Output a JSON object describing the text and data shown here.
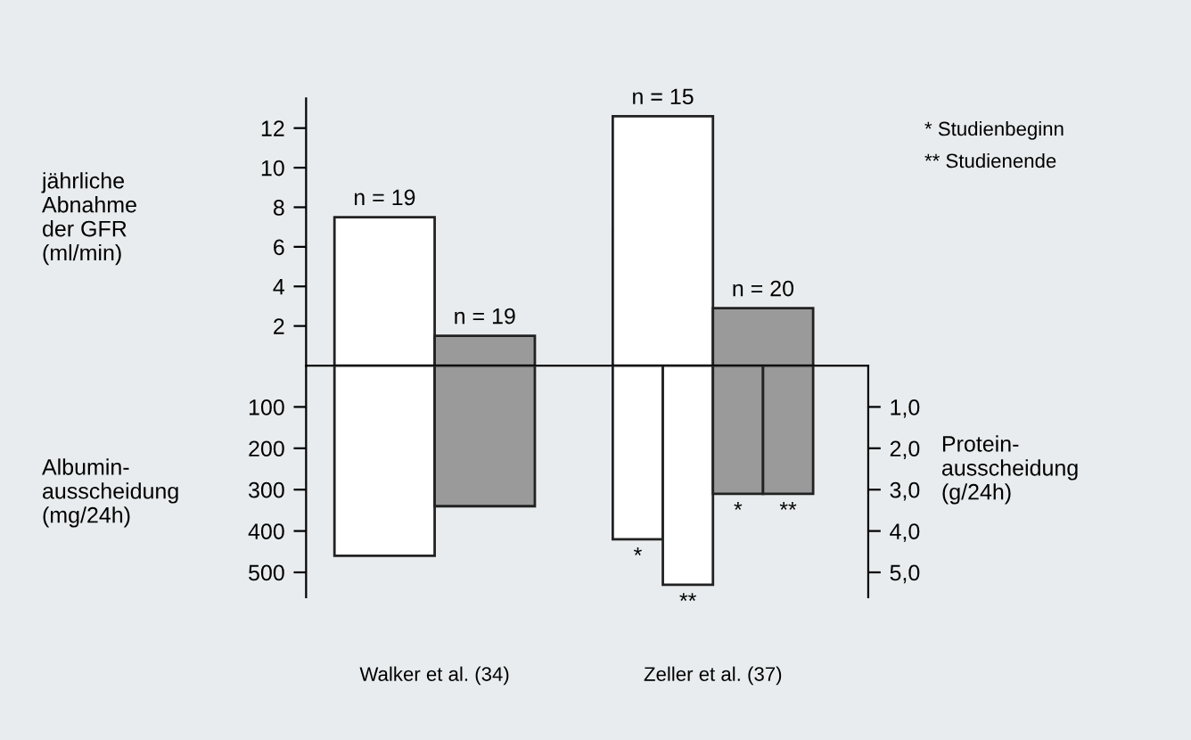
{
  "chart_data": [
    {
      "type": "bar",
      "ylabel": "jährliche\nAbnahme\nder GFR\n(ml/min)",
      "annotations": [
        "* Studienbeginn",
        "** Studienende",
        {
          "text": "n = 19",
          "x": "Walker et al. (34)",
          "y": 7.5
        },
        {
          "text": "n = 19",
          "x": "Walker et al. (34)",
          "y": 1.5
        },
        {
          "text": "n = 15",
          "x": "Zeller et al. (37)",
          "y": 12.6
        },
        {
          "text": "n = 20",
          "x": "Zeller et al. (37)",
          "y": 2.9
        }
      ],
      "categories": [
        "Walker et al. (34)",
        "Zeller et al. (37)"
      ],
      "series": [
        {
          "color": "#ffffff",
          "values": [
            7.5,
            12.6
          ]
        },
        {
          "color": "#9a9a9a",
          "values": [
            1.5,
            2.9
          ]
        }
      ],
      "ylim": [
        0,
        13.5
      ],
      "yticks": [
        2,
        4,
        6,
        8,
        10,
        12
      ],
      "tick_labels": "y",
      "grid": false,
      "legend": false
    },
    {
      "type": "bar",
      "ylabel": "Albumin-\nausscheidung\n(mg/24h)",
      "y2label": "Protein-\nausscheidung\n(g/24h)",
      "categories": [
        "Walker et al. (34)",
        "Zeller et al. (37)"
      ],
      "series": [
        {
          "color": "#ffffff",
          "values": [
            460,
            null
          ]
        },
        {
          "color": "#9a9a9a",
          "values": [
            340,
            null
          ]
        },
        {
          "color": "#ffffff",
          "values": [
            null,
            4.2
          ],
          "axis": "y2",
          "value_labels": [
            null,
            "*"
          ]
        },
        {
          "color": "#ffffff",
          "values": [
            null,
            5.3
          ],
          "axis": "y2",
          "value_labels": [
            null,
            "**"
          ]
        },
        {
          "color": "#9a9a9a",
          "values": [
            null,
            3.1
          ],
          "axis": "y2",
          "value_labels": [
            null,
            "*"
          ]
        },
        {
          "color": "#9a9a9a",
          "values": [
            null,
            3.1
          ],
          "axis": "y2",
          "value_labels": [
            null,
            "**"
          ]
        }
      ],
      "ylim": [
        560,
        0
      ],
      "yticks": [
        100,
        200,
        300,
        400,
        500
      ],
      "y2lim": [
        5.6,
        0
      ],
      "y2ticks": [
        {
          "value": 1,
          "label": "1,0"
        },
        {
          "value": 2,
          "label": "2,0"
        },
        {
          "value": 3,
          "label": "3,0"
        },
        {
          "value": 4,
          "label": "4,0"
        },
        {
          "value": 5,
          "label": "5,0"
        }
      ],
      "grid": false,
      "legend": false
    }
  ]
}
